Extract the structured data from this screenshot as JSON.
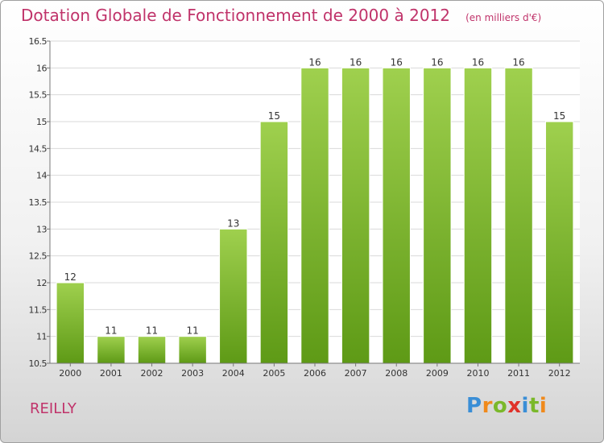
{
  "header": {
    "title": "Dotation Globale de Fonctionnement de 2000 à 2012",
    "unit": "(en milliers d'€)"
  },
  "footer": {
    "commune": "REILLY",
    "logo_letters": [
      "P",
      "r",
      "o",
      "x",
      "i",
      "t",
      "i"
    ],
    "logo_colors": [
      "#3a8ed6",
      "#f08a1c",
      "#7ab82a",
      "#e0322a",
      "#3a8ed6",
      "#7ab82a",
      "#f08a1c"
    ]
  },
  "chart_data": {
    "type": "bar",
    "categories": [
      "2000",
      "2001",
      "2002",
      "2003",
      "2004",
      "2005",
      "2006",
      "2007",
      "2008",
      "2009",
      "2010",
      "2011",
      "2012"
    ],
    "values": [
      12,
      11,
      11,
      11,
      13,
      15,
      16,
      16,
      16,
      16,
      16,
      16,
      15
    ],
    "labels": [
      "12",
      "11",
      "11",
      "11",
      "13",
      "15",
      "16",
      "16",
      "16",
      "16",
      "16",
      "16",
      "15"
    ],
    "title": "Dotation Globale de Fonctionnement de 2000 à 2012",
    "xlabel": "",
    "ylabel": "",
    "ylim": [
      10.5,
      16.5
    ],
    "yticks": [
      10.5,
      11,
      11.5,
      12,
      12.5,
      13,
      13.5,
      14,
      14.5,
      15,
      15.5,
      16,
      16.5
    ],
    "ytick_labels": [
      "10.5",
      "11",
      "11.5",
      "12",
      "12.5",
      "13",
      "13.5",
      "14",
      "14.5",
      "15",
      "15.5",
      "16",
      "16.5"
    ],
    "grid": true,
    "bar_color_top": "#9fd04e",
    "bar_color_bottom": "#5e9a16",
    "grid_color": "#d9d9d9",
    "axis_color": "#777777",
    "text_color": "#333333"
  }
}
